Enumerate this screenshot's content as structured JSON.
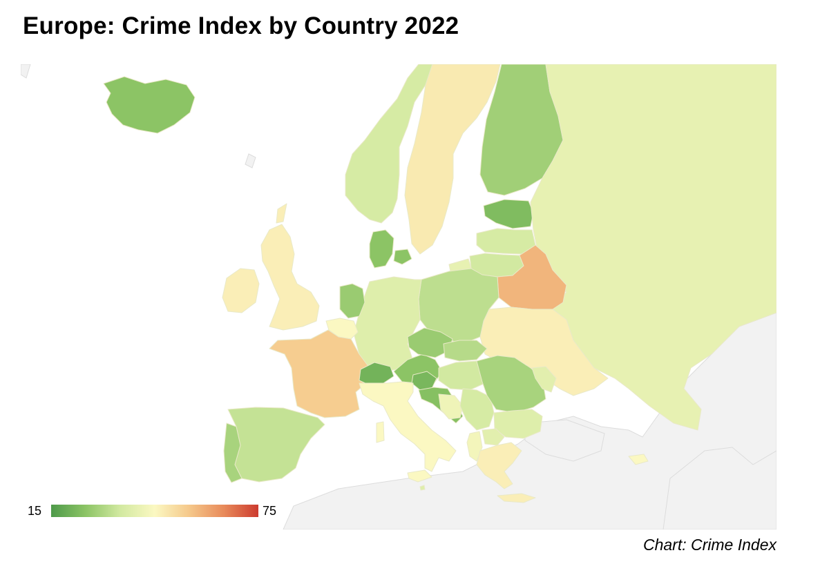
{
  "title": "Europe: Crime Index by Country 2022",
  "source": "Chart: Crime Index",
  "legend": {
    "min": "15",
    "max": "75"
  },
  "scale_colors": [
    "#4e9a4a",
    "#8cc465",
    "#d2e9a1",
    "#fbf8c2",
    "#f5c88a",
    "#e88a5a",
    "#cc3b2f"
  ],
  "colors": {
    "land_background": "#f2f2f2",
    "border": "#dddddd",
    "sea": "#ffffff",
    "no_data": "#ececec"
  },
  "regions": [
    {
      "name": "Iceland",
      "value": 25
    },
    {
      "name": "Norway",
      "value": 36
    },
    {
      "name": "Sweden",
      "value": 48
    },
    {
      "name": "Finland",
      "value": 28
    },
    {
      "name": "Estonia",
      "value": 23
    },
    {
      "name": "Latvia",
      "value": 36
    },
    {
      "name": "Lithuania",
      "value": 35
    },
    {
      "name": "Russia",
      "value": 40
    },
    {
      "name": "Belarus",
      "value": 58
    },
    {
      "name": "Ukraine",
      "value": 47
    },
    {
      "name": "Poland",
      "value": 32
    },
    {
      "name": "Germany",
      "value": 38
    },
    {
      "name": "Denmark",
      "value": 25
    },
    {
      "name": "Netherlands",
      "value": 27
    },
    {
      "name": "Belgium",
      "value": 45
    },
    {
      "name": "United Kingdom",
      "value": 47
    },
    {
      "name": "Ireland",
      "value": 47
    },
    {
      "name": "France",
      "value": 54
    },
    {
      "name": "Switzerland",
      "value": 21
    },
    {
      "name": "Austria",
      "value": 25
    },
    {
      "name": "Czechia",
      "value": 27
    },
    {
      "name": "Slovakia",
      "value": 31
    },
    {
      "name": "Hungary",
      "value": 35
    },
    {
      "name": "Slovenia",
      "value": 22
    },
    {
      "name": "Croatia",
      "value": 24
    },
    {
      "name": "Bosnia and Herzegovina",
      "value": 42
    },
    {
      "name": "Serbia",
      "value": 36
    },
    {
      "name": "Romania",
      "value": 29
    },
    {
      "name": "Moldova",
      "value": 39
    },
    {
      "name": "Bulgaria",
      "value": 38
    },
    {
      "name": "North Macedonia",
      "value": 39
    },
    {
      "name": "Albania",
      "value": 43
    },
    {
      "name": "Greece",
      "value": 47
    },
    {
      "name": "Italy",
      "value": 45
    },
    {
      "name": "Spain",
      "value": 33
    },
    {
      "name": "Portugal",
      "value": 29
    },
    {
      "name": "Cyprus",
      "value": 45
    },
    {
      "name": "Malta",
      "value": 38
    }
  ]
}
